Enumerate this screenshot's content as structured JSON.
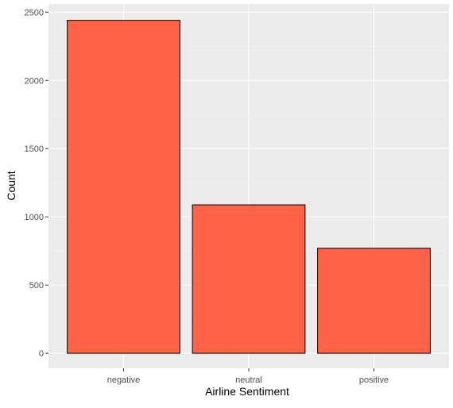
{
  "chart_data": {
    "type": "bar",
    "title": "",
    "xlabel": "Airline Sentiment",
    "ylabel": "Count",
    "categories": [
      "negative",
      "neutral",
      "positive"
    ],
    "values": [
      2440,
      1088,
      770
    ],
    "ylim": [
      -110,
      2560
    ],
    "yticks": [
      0,
      500,
      1000,
      1500,
      2000,
      2500
    ],
    "grid": true,
    "legend": "none",
    "colors": {
      "bar_fill": "#FF6347",
      "bar_stroke": "#000000",
      "panel_background": "#EBEBEB",
      "grid_major": "#FFFFFF"
    }
  }
}
